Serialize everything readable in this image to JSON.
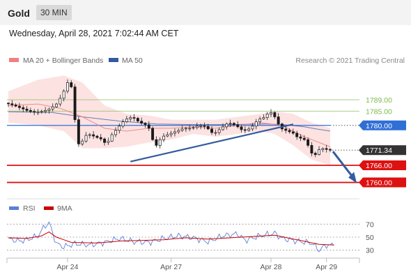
{
  "header": {
    "title": "Gold",
    "timeframe": "30 MIN",
    "datetime": "Wednesday, April 28, 2021 7:02:44 AM CET"
  },
  "legend": {
    "ma20": "MA 20 + Bollinger Bands",
    "ma50": "MA 50",
    "ma20_color": "#f08080",
    "ma50_color": "#335b9e"
  },
  "credit": "Research © 2021 Trading Central",
  "rsi_legend": {
    "rsi": "RSI",
    "ma9": "9MA",
    "rsi_color": "#5b7fd6",
    "ma9_color": "#cc0000"
  },
  "chart_data": [
    {
      "type": "candlestick",
      "ylim": [
        1755,
        1800
      ],
      "x_ticks": [
        "Apr 24",
        "Apr 27",
        "Apr 28",
        "Apr 29"
      ],
      "levels": [
        {
          "label": "1789.00",
          "value": 1789.0,
          "kind": "resistance",
          "color": "#7db94a"
        },
        {
          "label": "1785.00",
          "value": 1785.0,
          "kind": "resistance",
          "color": "#7db94a"
        },
        {
          "label": "1780.00",
          "value": 1780.0,
          "kind": "pivot",
          "color": "#2f6fd6"
        },
        {
          "label": "1771.34",
          "value": 1771.34,
          "kind": "last",
          "color": "#333333"
        },
        {
          "label": "1766.00",
          "value": 1766.0,
          "kind": "support",
          "color": "#dd1111"
        },
        {
          "label": "1760.00",
          "value": 1760.0,
          "kind": "support",
          "color": "#dd1111"
        }
      ],
      "price_path": [
        [
          0,
          1787.8
        ],
        [
          2,
          1787
        ],
        [
          4,
          1786
        ],
        [
          6,
          1785
        ],
        [
          8,
          1784.5
        ],
        [
          10,
          1785
        ],
        [
          12,
          1786
        ],
        [
          14,
          1788
        ],
        [
          15,
          1791
        ],
        [
          16,
          1793
        ],
        [
          17,
          1797
        ],
        [
          18,
          1790
        ],
        [
          19,
          1774
        ],
        [
          20,
          1773
        ],
        [
          21,
          1776
        ],
        [
          22,
          1777
        ],
        [
          24,
          1776
        ],
        [
          26,
          1775
        ],
        [
          27,
          1773
        ],
        [
          28,
          1776
        ],
        [
          30,
          1779
        ],
        [
          32,
          1782
        ],
        [
          34,
          1783
        ],
        [
          36,
          1781
        ],
        [
          38,
          1780
        ],
        [
          39,
          1778
        ],
        [
          40,
          1772
        ],
        [
          41,
          1774
        ],
        [
          42,
          1776
        ],
        [
          44,
          1777
        ],
        [
          46,
          1778
        ],
        [
          48,
          1779
        ],
        [
          50,
          1779
        ],
        [
          52,
          1780
        ],
        [
          54,
          1779.5
        ],
        [
          55,
          1778
        ],
        [
          56,
          1777
        ],
        [
          58,
          1779
        ],
        [
          60,
          1781
        ],
        [
          62,
          1780
        ],
        [
          64,
          1778
        ],
        [
          66,
          1779
        ],
        [
          68,
          1782
        ],
        [
          70,
          1783
        ],
        [
          71,
          1785
        ],
        [
          72,
          1784
        ],
        [
          73,
          1782
        ],
        [
          74,
          1779
        ],
        [
          76,
          1778
        ],
        [
          78,
          1777
        ],
        [
          79,
          1775
        ],
        [
          80,
          1776
        ],
        [
          81,
          1774
        ],
        [
          82,
          1772
        ],
        [
          83,
          1768.5
        ],
        [
          84,
          1771
        ],
        [
          85,
          1772
        ],
        [
          86,
          1771.8
        ],
        [
          87,
          1771.34
        ]
      ],
      "ma50_path": [
        [
          0,
          1784.8
        ],
        [
          12,
          1784.5
        ],
        [
          20,
          1783
        ],
        [
          30,
          1781.5
        ],
        [
          40,
          1780.5
        ],
        [
          50,
          1780.3
        ],
        [
          60,
          1780.3
        ],
        [
          70,
          1780.5
        ],
        [
          75,
          1780.2
        ],
        [
          80,
          1779.5
        ],
        [
          84,
          1778.6
        ],
        [
          87,
          1778
        ]
      ],
      "ma20_path": [
        [
          0,
          1787
        ],
        [
          8,
          1787.5
        ],
        [
          14,
          1786
        ],
        [
          20,
          1783
        ],
        [
          26,
          1779
        ],
        [
          32,
          1778
        ],
        [
          38,
          1779
        ],
        [
          44,
          1779
        ],
        [
          50,
          1779.5
        ],
        [
          56,
          1779
        ],
        [
          62,
          1780
        ],
        [
          68,
          1781
        ],
        [
          74,
          1780
        ],
        [
          80,
          1776
        ],
        [
          86,
          1773
        ],
        [
          87,
          1772.5
        ]
      ],
      "bollinger_upper": [
        [
          0,
          1792
        ],
        [
          8,
          1796
        ],
        [
          15,
          1797.5
        ],
        [
          20,
          1795
        ],
        [
          26,
          1787
        ],
        [
          32,
          1784
        ],
        [
          38,
          1783.5
        ],
        [
          44,
          1782
        ],
        [
          50,
          1782
        ],
        [
          56,
          1782
        ],
        [
          62,
          1783
        ],
        [
          68,
          1784
        ],
        [
          72,
          1785
        ],
        [
          77,
          1784
        ],
        [
          82,
          1781
        ],
        [
          87,
          1779
        ]
      ],
      "bollinger_lower": [
        [
          0,
          1781
        ],
        [
          8,
          1780
        ],
        [
          15,
          1778
        ],
        [
          20,
          1772
        ],
        [
          26,
          1772
        ],
        [
          32,
          1772.5
        ],
        [
          38,
          1774
        ],
        [
          44,
          1775
        ],
        [
          50,
          1777
        ],
        [
          56,
          1776
        ],
        [
          62,
          1777
        ],
        [
          68,
          1778
        ],
        [
          72,
          1777
        ],
        [
          77,
          1773
        ],
        [
          82,
          1768
        ],
        [
          87,
          1766
        ]
      ],
      "trendline": [
        [
          33,
          1767.3
        ],
        [
          77,
          1780.4
        ]
      ],
      "forecast_arrow": [
        [
          87,
          1771.34
        ],
        [
          94,
          1760
        ]
      ]
    },
    {
      "type": "line",
      "title": "RSI",
      "ylim": [
        20,
        80
      ],
      "y_ticks": [
        70,
        50,
        30
      ],
      "series": [
        {
          "name": "RSI",
          "values": [
            [
              0,
              47
            ],
            [
              3,
              44
            ],
            [
              5,
              46
            ],
            [
              8,
              52
            ],
            [
              10,
              68
            ],
            [
              11,
              72
            ],
            [
              12,
              56
            ],
            [
              13,
              40
            ],
            [
              15,
              35
            ],
            [
              18,
              40
            ],
            [
              22,
              38
            ],
            [
              26,
              42
            ],
            [
              30,
              48
            ],
            [
              34,
              43
            ],
            [
              38,
              42
            ],
            [
              42,
              48
            ],
            [
              46,
              52
            ],
            [
              50,
              49
            ],
            [
              54,
              43
            ],
            [
              58,
              52
            ],
            [
              62,
              55
            ],
            [
              64,
              45
            ],
            [
              68,
              52
            ],
            [
              72,
              56
            ],
            [
              74,
              48
            ],
            [
              78,
              44
            ],
            [
              82,
              41
            ],
            [
              84,
              30
            ],
            [
              86,
              38
            ],
            [
              87,
              37
            ],
            [
              88,
              39
            ]
          ]
        },
        {
          "name": "9MA",
          "values": [
            [
              0,
              49
            ],
            [
              5,
              48
            ],
            [
              9,
              52
            ],
            [
              11,
              58
            ],
            [
              13,
              50
            ],
            [
              17,
              42
            ],
            [
              24,
              41
            ],
            [
              30,
              44
            ],
            [
              36,
              45
            ],
            [
              42,
              46
            ],
            [
              48,
              49
            ],
            [
              54,
              47
            ],
            [
              60,
              49
            ],
            [
              66,
              51
            ],
            [
              72,
              53
            ],
            [
              78,
              46
            ],
            [
              84,
              39
            ],
            [
              88,
              38
            ]
          ]
        }
      ]
    }
  ]
}
